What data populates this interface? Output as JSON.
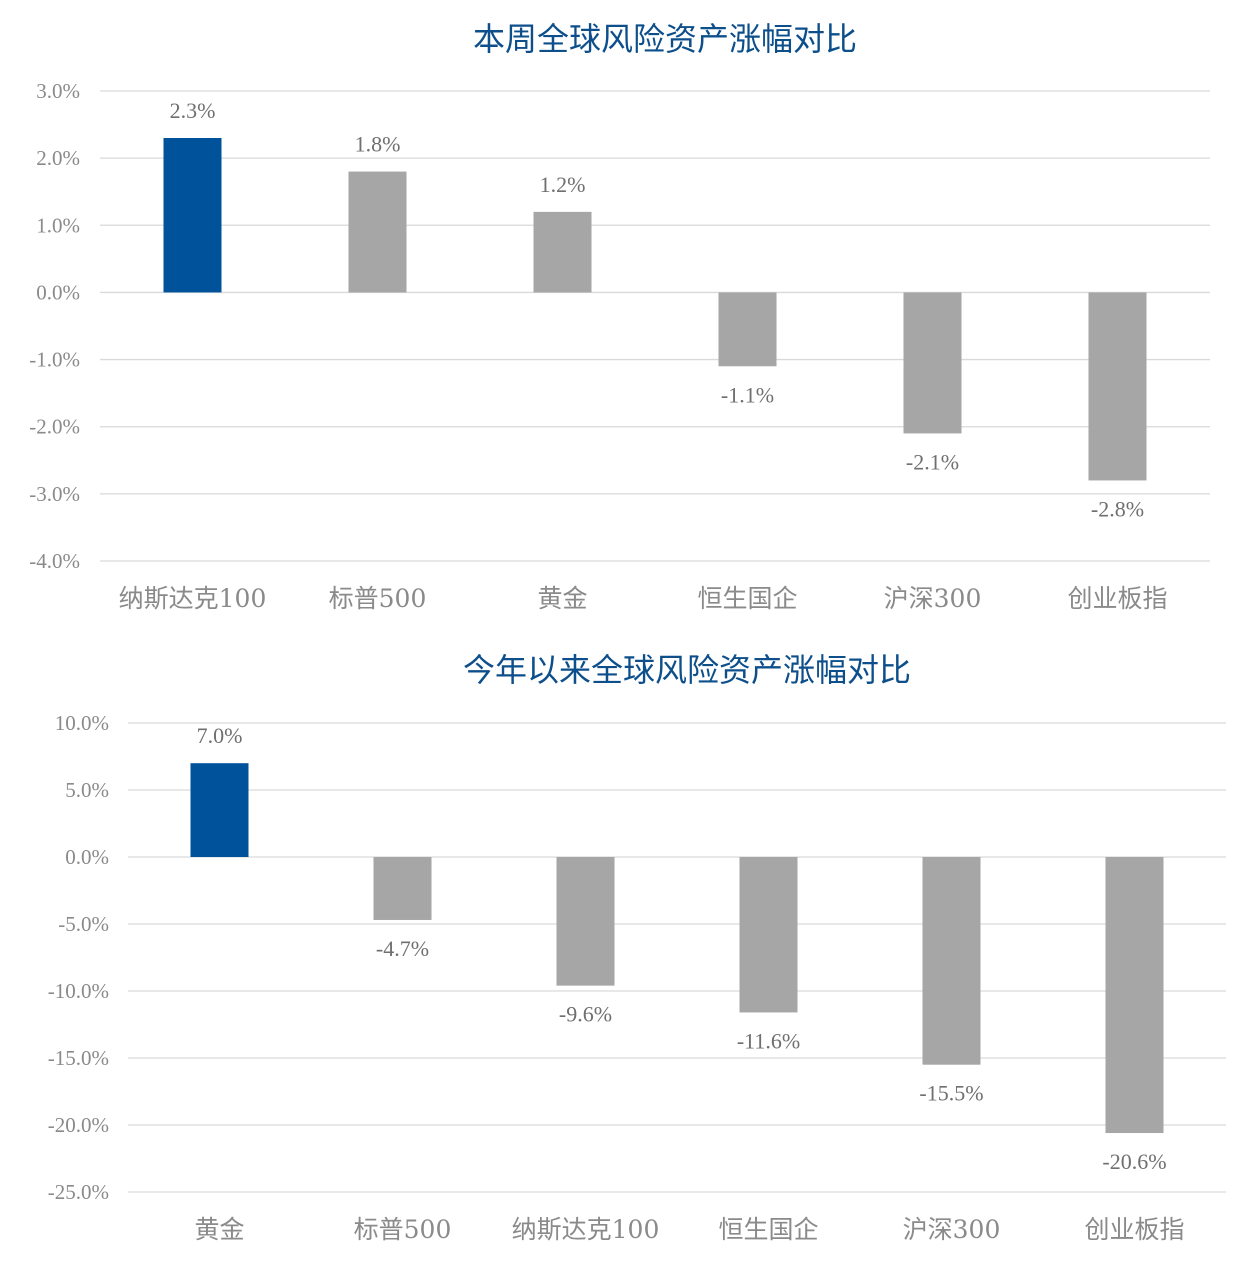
{
  "chart_data": [
    {
      "type": "bar",
      "title": "本周全球风险资产涨幅对比",
      "categories": [
        "纳斯达克100",
        "标普500",
        "黄金",
        "恒生国企",
        "沪深300",
        "创业板指"
      ],
      "values": [
        2.3,
        1.8,
        1.2,
        -1.1,
        -2.1,
        -2.8
      ],
      "data_labels": [
        "2.3%",
        "1.8%",
        "1.2%",
        "-1.1%",
        "-2.1%",
        "-2.8%"
      ],
      "highlight_index": 0,
      "ylim": [
        -4.0,
        3.0
      ],
      "yticks": [
        3.0,
        2.0,
        1.0,
        0.0,
        -1.0,
        -2.0,
        -3.0,
        -4.0
      ],
      "ytick_labels": [
        "3.0%",
        "2.0%",
        "1.0%",
        "0.0%",
        "-1.0%",
        "-2.0%",
        "-3.0%",
        "-4.0%"
      ],
      "grid": true,
      "xlabel": "",
      "ylabel": ""
    },
    {
      "type": "bar",
      "title": "今年以来全球风险资产涨幅对比",
      "categories": [
        "黄金",
        "标普500",
        "纳斯达克100",
        "恒生国企",
        "沪深300",
        "创业板指"
      ],
      "values": [
        7.0,
        -4.7,
        -9.6,
        -11.6,
        -15.5,
        -20.6
      ],
      "data_labels": [
        "7.0%",
        "-4.7%",
        "-9.6%",
        "-11.6%",
        "-15.5%",
        "-20.6%"
      ],
      "highlight_index": 0,
      "ylim": [
        -25.0,
        10.0
      ],
      "yticks": [
        10.0,
        5.0,
        0.0,
        -5.0,
        -10.0,
        -15.0,
        -20.0,
        -25.0
      ],
      "ytick_labels": [
        "10.0%",
        "5.0%",
        "0.0%",
        "-5.0%",
        "-10.0%",
        "-15.0%",
        "-20.0%",
        "-25.0%"
      ],
      "grid": true,
      "xlabel": "",
      "ylabel": ""
    }
  ],
  "colors": {
    "highlight": "#00529b",
    "bar": "#a6a6a6",
    "grid": "#d9d9d9",
    "title": "#0d4f8b",
    "axis_text": "#8a8a8a"
  }
}
